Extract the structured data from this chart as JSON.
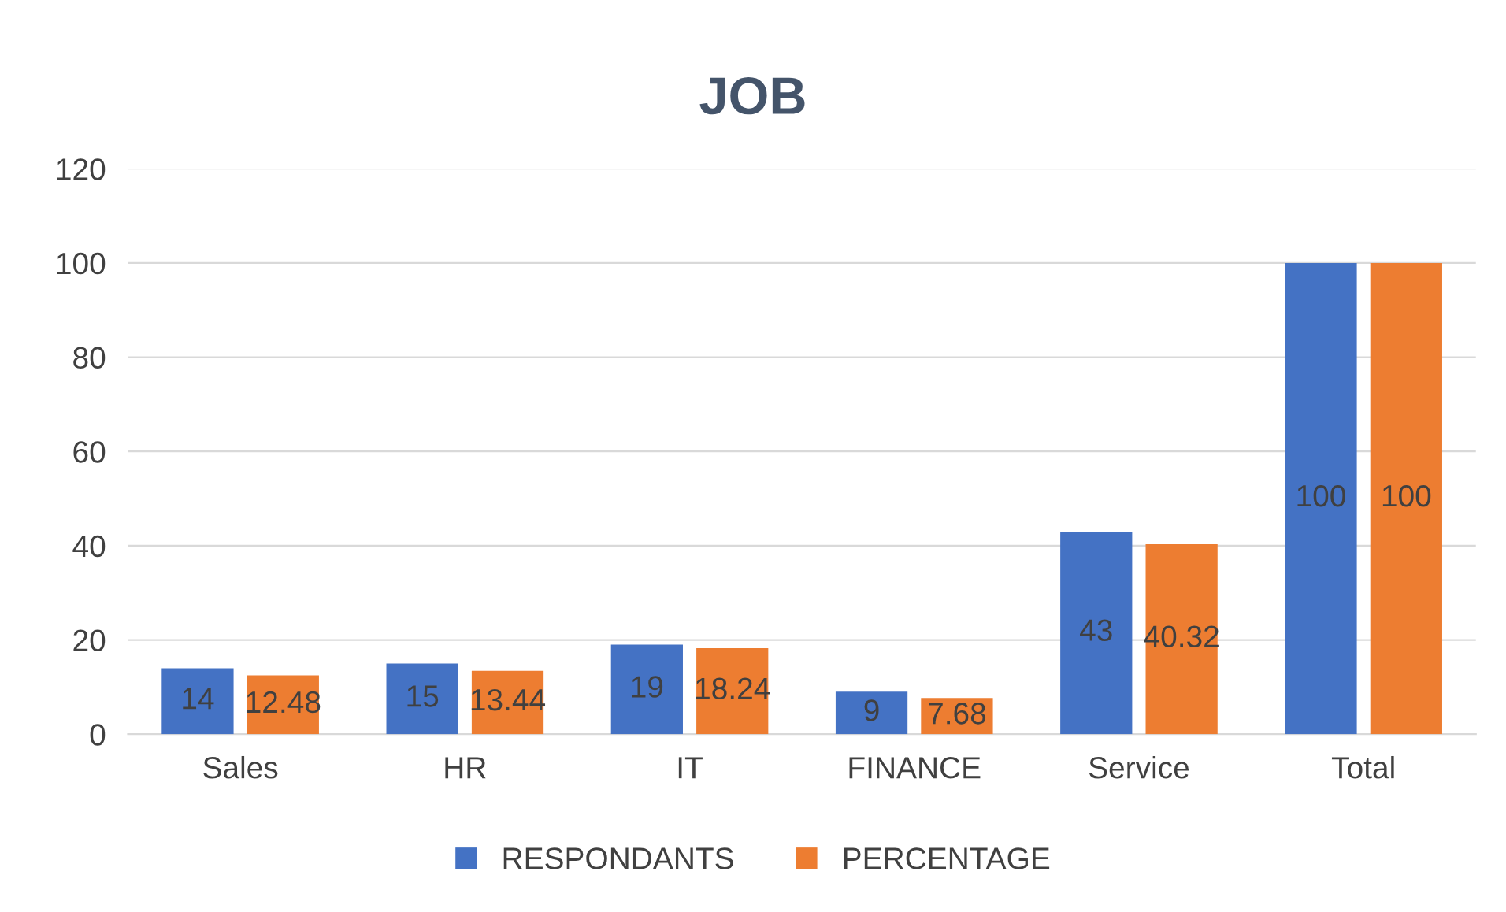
{
  "chart_data": {
    "type": "bar",
    "title": "JOB",
    "categories": [
      "Sales",
      "HR",
      "IT",
      "FINANCE",
      "Service",
      "Total"
    ],
    "series": [
      {
        "name": "RESPONDANTS",
        "color": "#4472c4",
        "values": [
          14,
          15,
          19,
          9,
          43,
          100
        ]
      },
      {
        "name": "PERCENTAGE",
        "color": "#ed7d31",
        "values": [
          12.48,
          13.44,
          18.24,
          7.68,
          40.32,
          100
        ]
      }
    ],
    "ylim": [
      0,
      120
    ],
    "yticks": [
      0,
      20,
      40,
      60,
      80,
      100,
      120
    ],
    "grid": "y",
    "legend": "bottom",
    "data_labels": true
  }
}
